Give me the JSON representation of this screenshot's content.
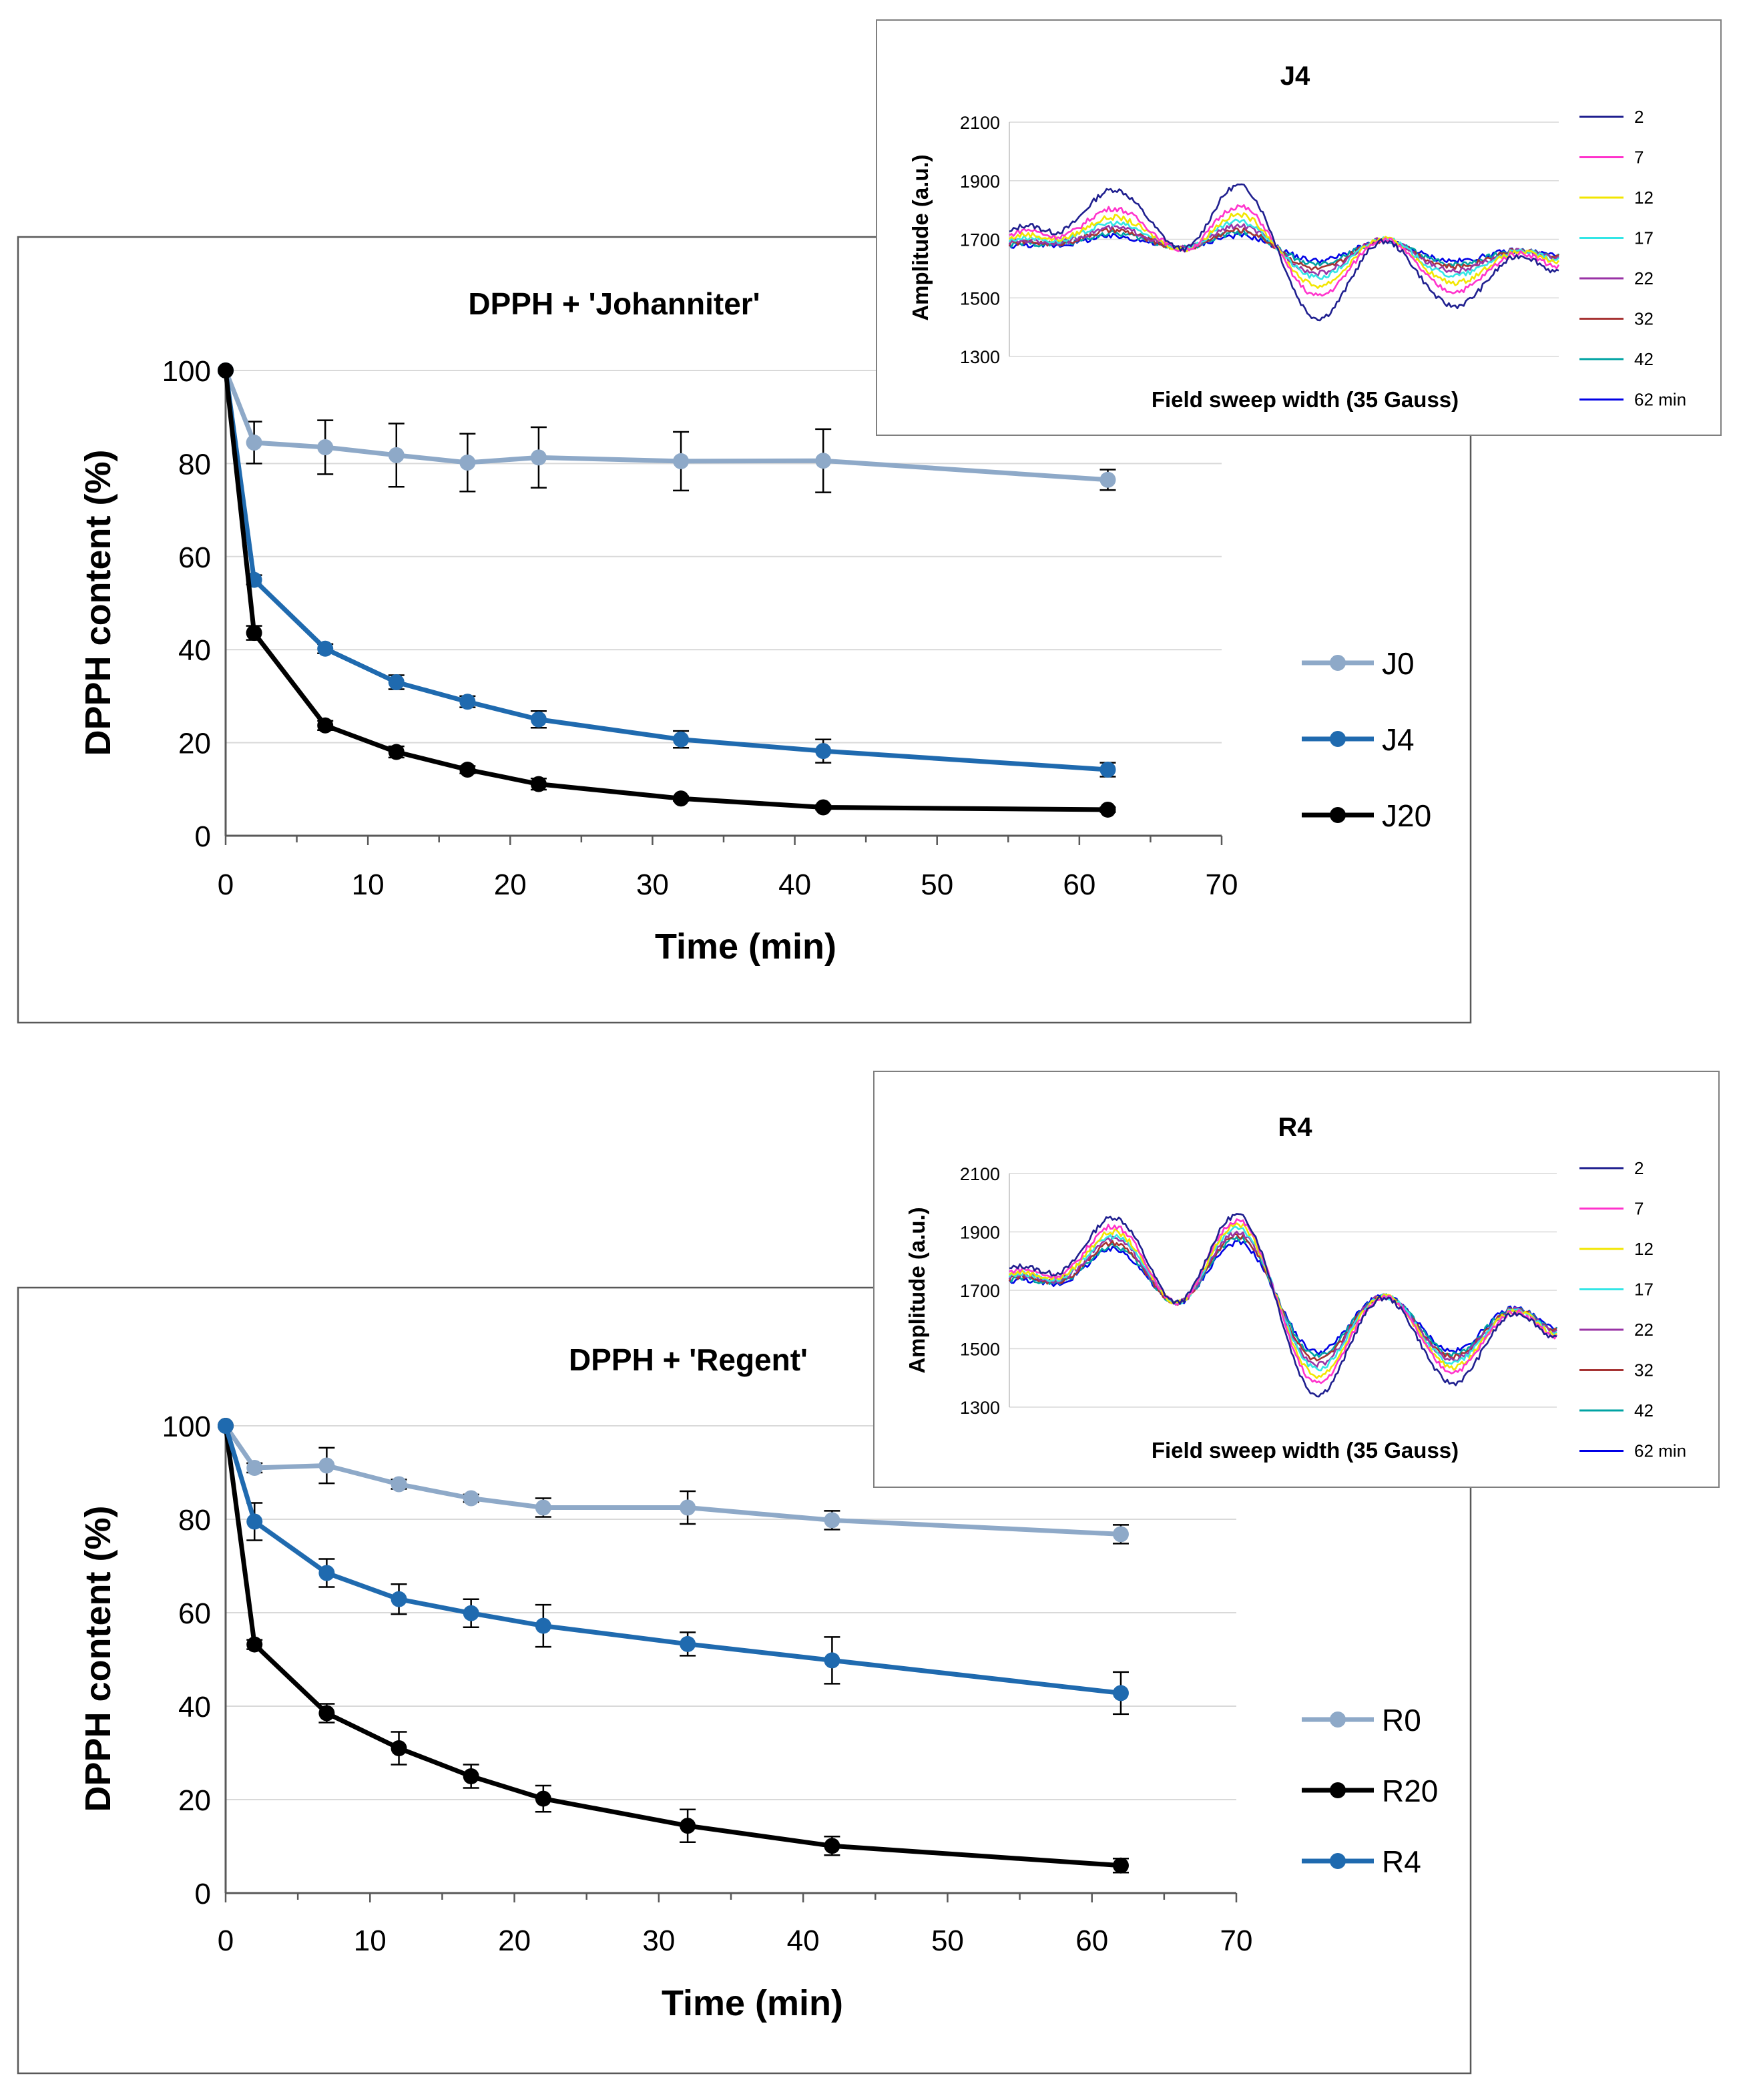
{
  "chart_data": [
    {
      "id": "johanniter",
      "type": "line",
      "title": "DPPH + 'Johanniter'",
      "xlabel": "Time (min)",
      "ylabel": "DPPH content (%)",
      "xlim": [
        0,
        70
      ],
      "ylim": [
        0,
        100
      ],
      "xticks": [
        "0",
        "10",
        "20",
        "30",
        "40",
        "50",
        "60",
        "70"
      ],
      "yticks": [
        "0",
        "20",
        "40",
        "60",
        "80",
        "100"
      ],
      "grid": true,
      "legend_position": "right",
      "x": [
        0,
        2,
        7,
        12,
        17,
        22,
        32,
        42,
        62
      ],
      "series": [
        {
          "name": "J0",
          "color": "#8EA9C8",
          "values": [
            100,
            84.5,
            83.5,
            81.8,
            80.2,
            81.3,
            80.5,
            80.6,
            76.5
          ],
          "errors": [
            0,
            4.5,
            5.8,
            6.8,
            6.2,
            6.5,
            6.3,
            6.8,
            2.2
          ]
        },
        {
          "name": "J4",
          "color": "#1F6AAF",
          "values": [
            100,
            55,
            40.2,
            33,
            28.8,
            25,
            20.7,
            18.2,
            14.2
          ],
          "errors": [
            0,
            1,
            1,
            1.5,
            1.2,
            1.8,
            1.8,
            2.5,
            1.5
          ]
        },
        {
          "name": "J20",
          "color": "#000000",
          "values": [
            100,
            43.6,
            23.7,
            18,
            14.2,
            11.1,
            8,
            6.1,
            5.6
          ],
          "errors": [
            0,
            1.5,
            1,
            1.2,
            0.8,
            1.2,
            0.5,
            0.5,
            0.5
          ]
        }
      ]
    },
    {
      "id": "regent",
      "type": "line",
      "title": "DPPH + 'Regent'",
      "xlabel": "Time (min)",
      "ylabel": "DPPH content (%)",
      "xlim": [
        0,
        70
      ],
      "ylim": [
        0,
        100
      ],
      "xticks": [
        "0",
        "10",
        "20",
        "30",
        "40",
        "50",
        "60",
        "70"
      ],
      "yticks": [
        "0",
        "20",
        "40",
        "60",
        "80",
        "100"
      ],
      "grid": true,
      "legend_position": "right",
      "x": [
        0,
        2,
        7,
        12,
        17,
        22,
        32,
        42,
        62
      ],
      "series": [
        {
          "name": "R0",
          "color": "#8EA9C8",
          "values": [
            100,
            91,
            91.5,
            87.5,
            84.5,
            82.5,
            82.5,
            79.8,
            76.8
          ],
          "errors": [
            0,
            1,
            3.8,
            1,
            0.8,
            2,
            3.5,
            2,
            2
          ]
        },
        {
          "name": "R20",
          "color": "#000000",
          "values": [
            100,
            53.2,
            38.5,
            31,
            25,
            20.2,
            14.4,
            10.1,
            5.9
          ],
          "errors": [
            0,
            1,
            2,
            3.5,
            2.5,
            2.8,
            3.5,
            2,
            1.5
          ]
        },
        {
          "name": "R4",
          "color": "#1F6AAF",
          "values": [
            100,
            79.5,
            68.5,
            62.9,
            59.9,
            57.2,
            53.3,
            49.8,
            42.8
          ],
          "errors": [
            0,
            4,
            3,
            3.2,
            3,
            4.5,
            2.5,
            5,
            4.5
          ]
        }
      ]
    },
    {
      "id": "j4_spectra",
      "type": "line",
      "title": "J4",
      "xlabel": "Field sweep width (35 Gauss)",
      "ylabel": "Amplitude (a.u.)",
      "ylim": [
        1300,
        2100
      ],
      "yticks": [
        "1300",
        "1500",
        "1700",
        "1900",
        "2100"
      ],
      "grid": true,
      "legend_position": "right",
      "legend": [
        {
          "name": "2",
          "color": "#1F1F8F"
        },
        {
          "name": "7",
          "color": "#FF33CC"
        },
        {
          "name": "12",
          "color": "#F2E600"
        },
        {
          "name": "17",
          "color": "#33E6E6"
        },
        {
          "name": "22",
          "color": "#9933A6"
        },
        {
          "name": "32",
          "color": "#A63333"
        },
        {
          "name": "42",
          "color": "#00A3A3"
        },
        {
          "name": "62 min",
          "color": "#0000E6"
        }
      ],
      "baseline": 1670,
      "features": [
        {
          "pos": 0.03,
          "amps": [
            75,
            60,
            45,
            35,
            25,
            20,
            15,
            10
          ],
          "w": 0.035
        },
        {
          "pos": 0.19,
          "amps": [
            200,
            135,
            105,
            85,
            70,
            60,
            50,
            40
          ],
          "w": 0.055
        },
        {
          "pos": 0.33,
          "amps": [
            -60,
            -45,
            -35,
            -25,
            -20,
            -18,
            -12,
            -8
          ],
          "w": 0.035
        },
        {
          "pos": 0.42,
          "amps": [
            225,
            150,
            120,
            95,
            80,
            65,
            55,
            45
          ],
          "w": 0.055
        },
        {
          "pos": 0.56,
          "amps": [
            -250,
            -170,
            -135,
            -105,
            -90,
            -75,
            -60,
            -45
          ],
          "w": 0.055
        },
        {
          "pos": 0.68,
          "amps": [
            65,
            60,
            55,
            50,
            45,
            40,
            35,
            30
          ],
          "w": 0.045
        },
        {
          "pos": 0.81,
          "amps": [
            -200,
            -150,
            -120,
            -95,
            -80,
            -65,
            -55,
            -45
          ],
          "w": 0.06
        },
        {
          "pos": 0.93,
          "amps": [
            20,
            18,
            15,
            12,
            10,
            8,
            6,
            4
          ],
          "w": 0.05
        },
        {
          "pos": 1.0,
          "amps": [
            -90,
            -70,
            -55,
            -45,
            -40,
            -35,
            -30,
            -25
          ],
          "w": 0.04
        }
      ]
    },
    {
      "id": "r4_spectra",
      "type": "line",
      "title": "R4",
      "xlabel": "Field sweep width (35 Gauss)",
      "ylabel": "Amplitude (a.u.)",
      "ylim": [
        1300,
        2100
      ],
      "yticks": [
        "1300",
        "1500",
        "1700",
        "1900",
        "2100"
      ],
      "grid": true,
      "legend_position": "right",
      "legend": [
        {
          "name": "2",
          "color": "#1F1F8F"
        },
        {
          "name": "7",
          "color": "#FF33CC"
        },
        {
          "name": "12",
          "color": "#F2E600"
        },
        {
          "name": "17",
          "color": "#33E6E6"
        },
        {
          "name": "22",
          "color": "#9933A6"
        },
        {
          "name": "32",
          "color": "#A63333"
        },
        {
          "name": "42",
          "color": "#00A3A3"
        },
        {
          "name": "62 min",
          "color": "#0000E6"
        }
      ],
      "baseline": 1660,
      "features": [
        {
          "pos": 0.02,
          "amps": [
            120,
            110,
            100,
            95,
            90,
            85,
            80,
            75
          ],
          "w": 0.05
        },
        {
          "pos": 0.19,
          "amps": [
            290,
            260,
            240,
            225,
            215,
            200,
            190,
            180
          ],
          "w": 0.055
        },
        {
          "pos": 0.31,
          "amps": [
            -70,
            -65,
            -60,
            -58,
            -55,
            -52,
            -50,
            -48
          ],
          "w": 0.035
        },
        {
          "pos": 0.42,
          "amps": [
            310,
            290,
            275,
            260,
            245,
            235,
            225,
            210
          ],
          "w": 0.055
        },
        {
          "pos": 0.56,
          "amps": [
            -330,
            -290,
            -265,
            -240,
            -225,
            -210,
            -195,
            -180
          ],
          "w": 0.055
        },
        {
          "pos": 0.68,
          "amps": [
            60,
            58,
            56,
            54,
            52,
            50,
            48,
            46
          ],
          "w": 0.045
        },
        {
          "pos": 0.81,
          "amps": [
            -280,
            -240,
            -225,
            -210,
            -200,
            -190,
            -180,
            -170
          ],
          "w": 0.055
        },
        {
          "pos": 0.93,
          "amps": [
            15,
            15,
            15,
            15,
            15,
            15,
            15,
            15
          ],
          "w": 0.05
        },
        {
          "pos": 1.0,
          "amps": [
            -130,
            -125,
            -120,
            -115,
            -110,
            -105,
            -100,
            -95
          ],
          "w": 0.04
        }
      ]
    }
  ]
}
